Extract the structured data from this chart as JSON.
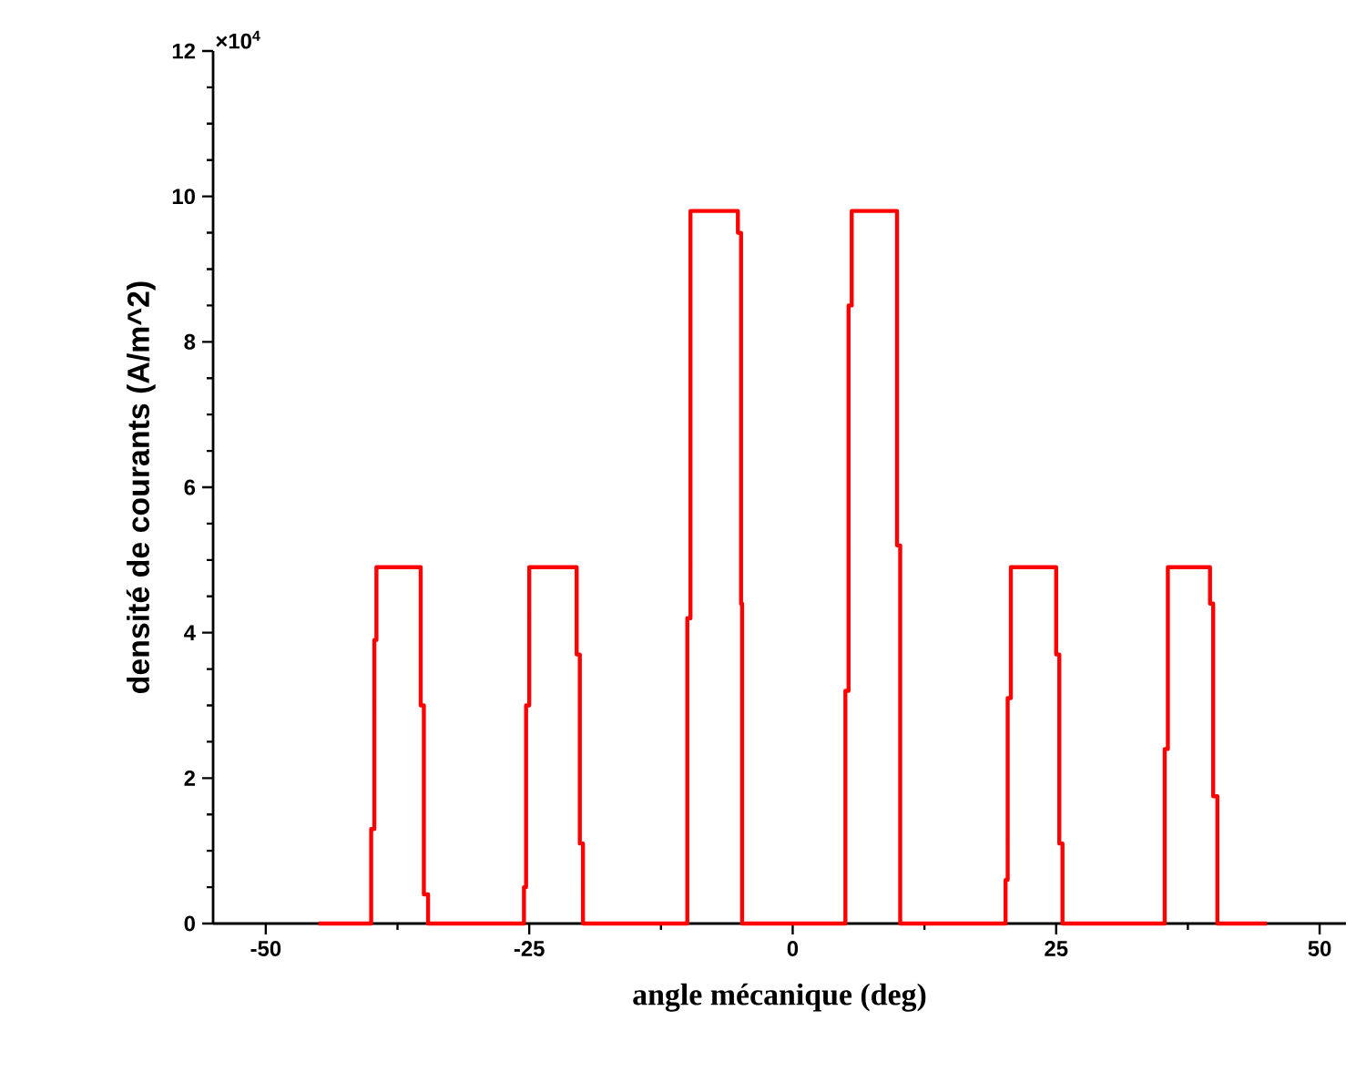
{
  "chart_data": {
    "type": "line",
    "xlabel": "angle mécanique (deg)",
    "ylabel": "densité de courants (A/m^2)",
    "annotations": [
      "×10$^{4}$"
    ],
    "x": [
      -45,
      -40,
      -40,
      -39.7,
      -39.7,
      -39.5,
      -39.5,
      -35.3,
      -35.3,
      -35,
      -35,
      -34.6,
      -34.6,
      -33,
      -25.5,
      -25.5,
      -25.3,
      -25.3,
      -25,
      -25,
      -20.5,
      -20.5,
      -20.2,
      -20.2,
      -19.9,
      -19.9,
      -15,
      -10,
      -10,
      -9.7,
      -9.7,
      -5.2,
      -5.2,
      -4.9,
      -4.9,
      -4.8,
      -4.8,
      5,
      5,
      5.3,
      5.3,
      5.6,
      5.6,
      9.9,
      9.9,
      10.2,
      10.2,
      15,
      20.2,
      20.2,
      20.4,
      20.4,
      20.7,
      20.7,
      25,
      25,
      25.3,
      25.3,
      25.6,
      25.6,
      30,
      35.3,
      35.3,
      35.6,
      35.6,
      39.6,
      39.6,
      39.9,
      39.9,
      40.3,
      40.3,
      45
    ],
    "series": [
      {
        "color": "#ff0000",
        "line_style": "solid",
        "values": [
          0,
          0,
          1.3,
          1.3,
          3.9,
          3.9,
          4.9,
          4.9,
          3.0,
          3.0,
          0.4,
          0.4,
          0,
          0,
          0,
          0.5,
          0.5,
          3.0,
          3.0,
          4.9,
          4.9,
          3.7,
          3.7,
          1.1,
          1.1,
          0,
          0,
          0,
          4.2,
          4.2,
          9.8,
          9.8,
          9.5,
          9.5,
          4.4,
          4.4,
          0,
          0,
          3.2,
          3.2,
          8.5,
          8.5,
          9.8,
          9.8,
          5.2,
          5.2,
          0,
          0,
          0,
          0.6,
          0.6,
          3.1,
          3.1,
          4.9,
          4.9,
          3.7,
          3.7,
          1.1,
          1.1,
          0,
          0,
          0,
          2.4,
          2.4,
          4.9,
          4.9,
          4.4,
          4.4,
          1.75,
          1.75,
          0,
          0
        ]
      }
    ],
    "xlim": [
      -55,
      52.5
    ],
    "xticks": [
      -50,
      -25,
      0,
      25,
      50
    ],
    "ylim": [
      0,
      12
    ],
    "yticks": [
      0,
      2,
      4,
      6,
      8,
      10,
      12
    ]
  }
}
